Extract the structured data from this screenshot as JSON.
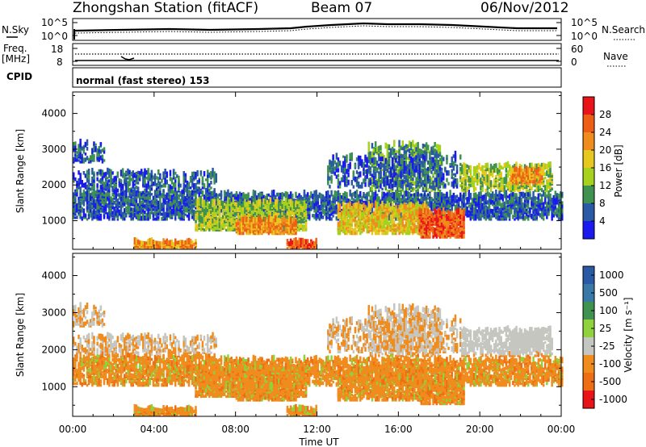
{
  "header": {
    "station": "Zhongshan Station (fitACF)",
    "beam": "Beam 07",
    "date": "06/Nov/2012"
  },
  "strip_panels": {
    "nsky_label": "N.Sky",
    "nsky_ticks": [
      "10^5",
      "10^0"
    ],
    "nsearch_label": "N.Search",
    "nsearch_ticks": [
      "10^5",
      "10^0"
    ],
    "freq_label": "Freq.",
    "freq_unit": "[MHz]",
    "freq_ticks": [
      "18",
      "8"
    ],
    "nave_label": "Nave",
    "nave_ticks": [
      "60",
      "0"
    ],
    "cpid_label": "CPID",
    "cpid_text": "normal (fast stereo) 153"
  },
  "chart_data": [
    {
      "type": "heatmap",
      "name": "power",
      "ylabel": "Slant Range [km]",
      "ylim": [
        200,
        4600
      ],
      "yticks": [
        "4000",
        "3000",
        "2000",
        "1000"
      ],
      "xlim": [
        "00:00",
        "24:00"
      ],
      "colorbar": {
        "label": "Power [dB]",
        "tick_labels": [
          "28",
          "24",
          "20",
          "16",
          "12",
          "8",
          "4"
        ],
        "colors_top_to_bottom": [
          "#e8141a",
          "#ee5d16",
          "#f08c1e",
          "#e6c81e",
          "#a6d21e",
          "#3f9250",
          "#2a5aa6",
          "#1a1aee"
        ]
      },
      "grid": false,
      "legend": "right"
    },
    {
      "type": "heatmap",
      "name": "velocity",
      "ylabel": "Slant Range [km]",
      "ylim": [
        200,
        4600
      ],
      "yticks": [
        "4000",
        "3000",
        "2000",
        "1000"
      ],
      "xlabel": "Time UT",
      "xlim": [
        "00:00",
        "24:00"
      ],
      "xticks": [
        "00:00",
        "04:00",
        "08:00",
        "12:00",
        "16:00",
        "20:00",
        "00:00"
      ],
      "colorbar": {
        "label": "Velocity [m s⁻¹]",
        "tick_labels": [
          "1000",
          "500",
          "100",
          "25",
          "-25",
          "-100",
          "-500",
          "-1000"
        ],
        "colors_top_to_bottom": [
          "#2a5aa6",
          "#3a78a8",
          "#3f9250",
          "#8fd23c",
          "#c6c6c0",
          "#f08c1e",
          "#ee6e14",
          "#e8141a"
        ]
      },
      "grid": false,
      "legend": "right"
    }
  ]
}
